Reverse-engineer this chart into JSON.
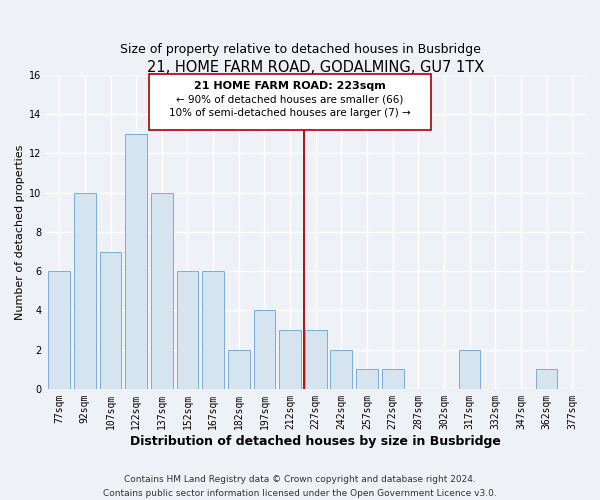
{
  "title": "21, HOME FARM ROAD, GODALMING, GU7 1TX",
  "subtitle": "Size of property relative to detached houses in Busbridge",
  "xlabel": "Distribution of detached houses by size in Busbridge",
  "ylabel": "Number of detached properties",
  "bar_labels": [
    "77sqm",
    "92sqm",
    "107sqm",
    "122sqm",
    "137sqm",
    "152sqm",
    "167sqm",
    "182sqm",
    "197sqm",
    "212sqm",
    "227sqm",
    "242sqm",
    "257sqm",
    "272sqm",
    "287sqm",
    "302sqm",
    "317sqm",
    "332sqm",
    "347sqm",
    "362sqm",
    "377sqm"
  ],
  "bar_values": [
    6,
    10,
    7,
    13,
    10,
    6,
    6,
    2,
    4,
    3,
    3,
    2,
    1,
    1,
    0,
    0,
    2,
    0,
    0,
    1,
    0
  ],
  "bar_color": "#d6e4f0",
  "bar_edge_color": "#7aabe0",
  "vline_x_idx": 9.55,
  "vline_color": "#aa0000",
  "annotation_box_title": "21 HOME FARM ROAD: 223sqm",
  "annotation_line1": "← 90% of detached houses are smaller (66)",
  "annotation_line2": "10% of semi-detached houses are larger (7) →",
  "annotation_box_color": "#ffffff",
  "annotation_box_edge_color": "#aa0000",
  "ylim": [
    0,
    16
  ],
  "yticks": [
    0,
    2,
    4,
    6,
    8,
    10,
    12,
    14,
    16
  ],
  "footer_line1": "Contains HM Land Registry data © Crown copyright and database right 2024.",
  "footer_line2": "Contains public sector information licensed under the Open Government Licence v3.0.",
  "background_color": "#eef2f7",
  "grid_color": "#ffffff",
  "title_fontsize": 10.5,
  "subtitle_fontsize": 9,
  "xlabel_fontsize": 9,
  "ylabel_fontsize": 8,
  "tick_fontsize": 7,
  "footer_fontsize": 6.5,
  "ann_title_fontsize": 8,
  "ann_text_fontsize": 7.5
}
